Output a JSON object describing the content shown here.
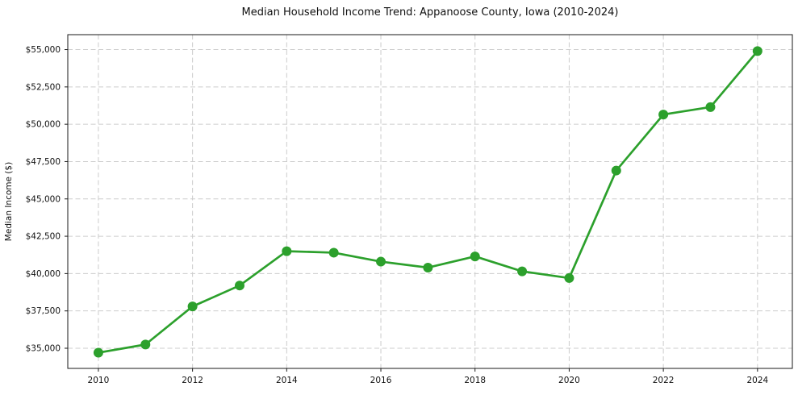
{
  "chart_data": {
    "type": "line",
    "title": "Median Household Income Trend: Appanoose County, Iowa (2010-2024)",
    "xlabel": "",
    "ylabel": "Median Income ($)",
    "x": [
      2010,
      2011,
      2012,
      2013,
      2014,
      2015,
      2016,
      2017,
      2018,
      2019,
      2020,
      2021,
      2022,
      2023,
      2024
    ],
    "values": [
      34700,
      35250,
      37800,
      39200,
      41500,
      41400,
      40800,
      40400,
      41150,
      40150,
      39700,
      46900,
      50650,
      51150,
      54900
    ],
    "xlim": [
      2009.35,
      2024.74
    ],
    "ylim": [
      33650,
      56000
    ],
    "xticks": [
      2010,
      2012,
      2014,
      2016,
      2018,
      2020,
      2022,
      2024
    ],
    "xtick_labels": [
      "2010",
      "2012",
      "2014",
      "2016",
      "2018",
      "2020",
      "2022",
      "2024"
    ],
    "yticks": [
      35000,
      37500,
      40000,
      42500,
      45000,
      47500,
      50000,
      52500,
      55000
    ],
    "ytick_labels": [
      "$35,000",
      "$37,500",
      "$40,000",
      "$42,500",
      "$45,000",
      "$47,500",
      "$50,000",
      "$52,500",
      "$55,000"
    ],
    "grid": true,
    "grid_style": "dashed",
    "legend_position": "none",
    "line_color": "#2ca02c",
    "marker": "circle",
    "grid_color": "#cccccc",
    "axis_color": "#1a1a1a",
    "background_color": "#ffffff"
  }
}
